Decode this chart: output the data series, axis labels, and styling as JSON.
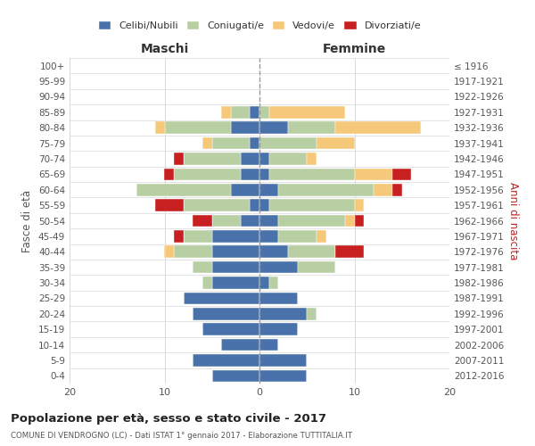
{
  "age_groups": [
    "0-4",
    "5-9",
    "10-14",
    "15-19",
    "20-24",
    "25-29",
    "30-34",
    "35-39",
    "40-44",
    "45-49",
    "50-54",
    "55-59",
    "60-64",
    "65-69",
    "70-74",
    "75-79",
    "80-84",
    "85-89",
    "90-94",
    "95-99",
    "100+"
  ],
  "birth_years": [
    "2012-2016",
    "2007-2011",
    "2002-2006",
    "1997-2001",
    "1992-1996",
    "1987-1991",
    "1982-1986",
    "1977-1981",
    "1972-1976",
    "1967-1971",
    "1962-1966",
    "1957-1961",
    "1952-1956",
    "1947-1951",
    "1942-1946",
    "1937-1941",
    "1932-1936",
    "1927-1931",
    "1922-1926",
    "1917-1921",
    "≤ 1916"
  ],
  "males": {
    "celibe": [
      5,
      7,
      4,
      6,
      7,
      8,
      5,
      5,
      5,
      5,
      2,
      1,
      3,
      2,
      2,
      1,
      3,
      1,
      0,
      0,
      0
    ],
    "coniugato": [
      0,
      0,
      0,
      0,
      0,
      0,
      1,
      2,
      4,
      3,
      3,
      7,
      10,
      7,
      6,
      4,
      7,
      2,
      0,
      0,
      0
    ],
    "vedovo": [
      0,
      0,
      0,
      0,
      0,
      0,
      0,
      0,
      1,
      0,
      0,
      0,
      0,
      0,
      0,
      1,
      1,
      1,
      0,
      0,
      0
    ],
    "divorziato": [
      0,
      0,
      0,
      0,
      0,
      0,
      0,
      0,
      0,
      1,
      2,
      3,
      0,
      1,
      1,
      0,
      0,
      0,
      0,
      0,
      0
    ]
  },
  "females": {
    "nubile": [
      5,
      5,
      2,
      4,
      5,
      4,
      1,
      4,
      3,
      2,
      2,
      1,
      2,
      1,
      1,
      0,
      3,
      0,
      0,
      0,
      0
    ],
    "coniugata": [
      0,
      0,
      0,
      0,
      1,
      0,
      1,
      4,
      5,
      4,
      7,
      9,
      10,
      9,
      4,
      6,
      5,
      1,
      0,
      0,
      0
    ],
    "vedova": [
      0,
      0,
      0,
      0,
      0,
      0,
      0,
      0,
      0,
      1,
      1,
      1,
      2,
      4,
      1,
      4,
      9,
      8,
      0,
      0,
      0
    ],
    "divorziata": [
      0,
      0,
      0,
      0,
      0,
      0,
      0,
      0,
      3,
      0,
      1,
      0,
      1,
      2,
      0,
      0,
      0,
      0,
      0,
      0,
      0
    ]
  },
  "colors": {
    "celibe": "#4a72aa",
    "coniugato": "#b8cfa3",
    "vedovo": "#f5c87a",
    "divorziato": "#c82020"
  },
  "title": "Popolazione per età, sesso e stato civile - 2017",
  "subtitle": "COMUNE DI VENDROGNO (LC) - Dati ISTAT 1° gennaio 2017 - Elaborazione TUTTITALIA.IT",
  "xlabel_left": "Maschi",
  "xlabel_right": "Femmine",
  "ylabel_left": "Fasce di età",
  "ylabel_right": "Anni di nascita",
  "xlim": 20,
  "legend_labels": [
    "Celibi/Nubili",
    "Coniugati/e",
    "Vedovi/e",
    "Divorziati/e"
  ],
  "background_color": "#ffffff",
  "grid_color": "#d8d8d8"
}
